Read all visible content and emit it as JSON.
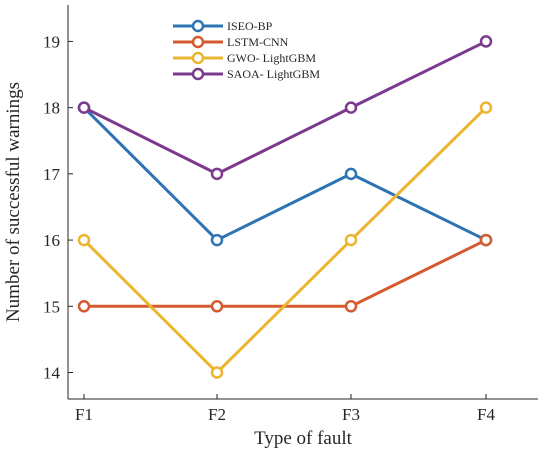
{
  "chart_data": {
    "type": "line",
    "categories": [
      "F1",
      "F2",
      "F3",
      "F4"
    ],
    "series": [
      {
        "name": "ISEO-BP",
        "values": [
          18,
          16,
          17,
          16
        ],
        "color": "#2e73b3"
      },
      {
        "name": "LSTM-CNN",
        "values": [
          15,
          15,
          15,
          16
        ],
        "color": "#d65a2f"
      },
      {
        "name": "GWO- LightGBM",
        "values": [
          16,
          14,
          16,
          18
        ],
        "color": "#ecb530"
      },
      {
        "name": "SAOA- LightGBM",
        "values": [
          18,
          17,
          18,
          19
        ],
        "color": "#7c3a8f"
      }
    ],
    "xlabel": "Type of fault",
    "ylabel": "Number of successful warnings",
    "ylim": [
      13.6,
      19.55
    ],
    "yticks": [
      14,
      15,
      16,
      17,
      18,
      19
    ],
    "grid": false,
    "legend_position": "top-center",
    "marker": "open-circle"
  }
}
